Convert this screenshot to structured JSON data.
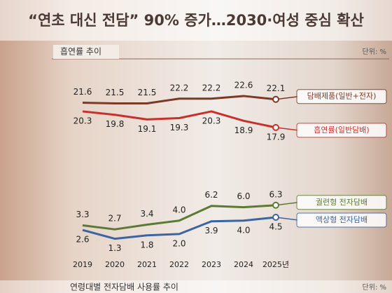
{
  "chart_data": {
    "type": "line",
    "title": "“연초 대신 전담” 90% 증가…2030·여성 중심 확산",
    "subtitle": "흡연률 추이",
    "unit": "단위: %",
    "footer_title": "연령대별 전자담배 사용률 추이",
    "footer_unit": "단위: %",
    "categories": [
      "2019",
      "2020",
      "2021",
      "2022",
      "2023",
      "2024",
      "2025년"
    ],
    "series": [
      {
        "name": "담배제품(일반+전자)",
        "color": "#7b3a26",
        "values": [
          21.6,
          21.5,
          21.5,
          22.2,
          22.2,
          22.6,
          22.1
        ],
        "value_labels": [
          "21.6",
          "21.5",
          "21.5",
          "22.2",
          "22.2",
          "22.6",
          "22.1"
        ]
      },
      {
        "name": "흡연률(일반담배)",
        "color": "#c9302c",
        "values": [
          20.3,
          19.8,
          19.1,
          19.3,
          20.3,
          18.9,
          17.9
        ],
        "value_labels": [
          "20.3",
          "19.8",
          "19.1",
          "19.3",
          "20.3",
          "18.9",
          "17.9"
        ]
      },
      {
        "name": "궐련형 전자담배",
        "color": "#5d7a35",
        "values": [
          3.3,
          2.7,
          3.4,
          4.0,
          6.2,
          6.0,
          6.3
        ],
        "value_labels": [
          "3.3",
          "2.7",
          "3.4",
          "4.0",
          "6.2",
          "6.0",
          "6.3"
        ]
      },
      {
        "name": "액상형 전자담배",
        "color": "#3b64a0",
        "values": [
          2.6,
          1.3,
          1.8,
          2.0,
          3.9,
          4.0,
          4.5
        ],
        "value_labels": [
          "2.6",
          "1.3",
          "1.8",
          "2.0",
          "3.9",
          "4.0",
          "4.5"
        ]
      }
    ]
  }
}
